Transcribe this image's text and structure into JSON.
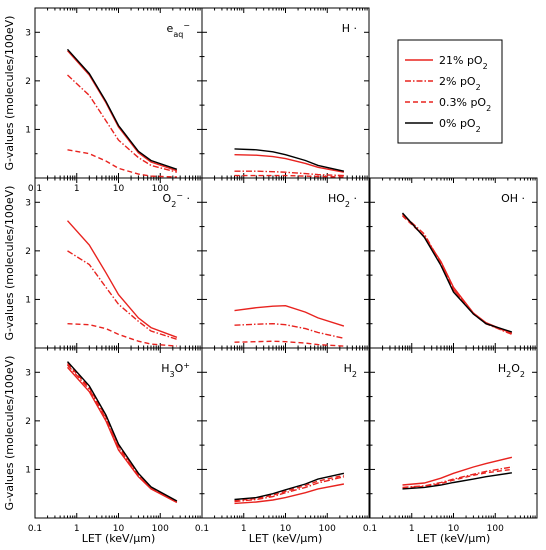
{
  "legend": [
    {
      "label_main": "21% pO",
      "label_sub": "2",
      "color": "#e8231f",
      "dash": "solid"
    },
    {
      "label_main": "2% pO",
      "label_sub": "2",
      "color": "#e8231f",
      "dash": "dashdot"
    },
    {
      "label_main": "0.3% pO",
      "label_sub": "2",
      "color": "#e8231f",
      "dash": "dashed"
    },
    {
      "label_main": "0% pO",
      "label_sub": "2",
      "color": "#000000",
      "dash": "solid"
    }
  ],
  "ylabel": "G-values (molecules/100eV)",
  "xlabel": "LET (keV/μm)",
  "chart_data": [
    {
      "type": "line",
      "row": 0,
      "col": 0,
      "species": {
        "main": "e",
        "sup": "−",
        "sub": "aq"
      },
      "xscale": "log",
      "xlim": [
        0.1,
        1000
      ],
      "ylim": [
        0,
        3.5
      ],
      "x_ticks": [
        "0.1",
        "1",
        "10",
        "100"
      ],
      "y_ticks": [
        "1",
        "2",
        "3"
      ],
      "x": [
        0.6,
        2,
        5,
        10,
        30,
        60,
        250
      ],
      "series": [
        {
          "values": [
            2.62,
            2.12,
            1.55,
            1.05,
            0.52,
            0.33,
            0.15
          ],
          "color": "#e8231f",
          "dash": "solid"
        },
        {
          "values": [
            2.12,
            1.7,
            1.18,
            0.78,
            0.42,
            0.26,
            0.12
          ],
          "color": "#e8231f",
          "dash": "dashdot"
        },
        {
          "values": [
            0.58,
            0.5,
            0.35,
            0.2,
            0.08,
            0.04,
            0.02
          ],
          "color": "#e8231f",
          "dash": "dashed"
        },
        {
          "values": [
            2.65,
            2.15,
            1.58,
            1.08,
            0.55,
            0.36,
            0.18
          ],
          "color": "#000000",
          "dash": "solid"
        }
      ]
    },
    {
      "type": "line",
      "row": 0,
      "col": 1,
      "species": {
        "main": "H",
        "dot": "·"
      },
      "xscale": "log",
      "xlim": [
        0.1,
        1000
      ],
      "ylim": [
        0,
        3.5
      ],
      "x_ticks": [],
      "y_ticks": [],
      "x": [
        0.6,
        2,
        5,
        10,
        30,
        60,
        250
      ],
      "series": [
        {
          "values": [
            0.48,
            0.47,
            0.44,
            0.4,
            0.3,
            0.22,
            0.12
          ],
          "color": "#e8231f",
          "dash": "solid"
        },
        {
          "values": [
            0.14,
            0.14,
            0.13,
            0.12,
            0.09,
            0.07,
            0.05
          ],
          "color": "#e8231f",
          "dash": "dashdot"
        },
        {
          "values": [
            0.05,
            0.05,
            0.05,
            0.05,
            0.04,
            0.03,
            0.02
          ],
          "color": "#e8231f",
          "dash": "dashed"
        },
        {
          "values": [
            0.6,
            0.58,
            0.54,
            0.48,
            0.36,
            0.26,
            0.14
          ],
          "color": "#000000",
          "dash": "solid"
        }
      ]
    },
    {
      "type": "line",
      "row": 1,
      "col": 0,
      "species": {
        "main": "O",
        "sub": "2",
        "sup": "−",
        "dot": "·"
      },
      "xscale": "log",
      "xlim": [
        0.1,
        1000
      ],
      "ylim": [
        0,
        3.5
      ],
      "x_ticks": [],
      "y_ticks": [
        "1",
        "2",
        "3"
      ],
      "x": [
        0.6,
        2,
        5,
        10,
        30,
        60,
        250
      ],
      "series": [
        {
          "values": [
            2.62,
            2.12,
            1.55,
            1.1,
            0.62,
            0.42,
            0.22
          ],
          "color": "#e8231f",
          "dash": "solid"
        },
        {
          "values": [
            2.0,
            1.72,
            1.25,
            0.9,
            0.55,
            0.35,
            0.18
          ],
          "color": "#e8231f",
          "dash": "dashdot"
        },
        {
          "values": [
            0.5,
            0.48,
            0.4,
            0.28,
            0.14,
            0.08,
            0.04
          ],
          "color": "#e8231f",
          "dash": "dashed"
        }
      ]
    },
    {
      "type": "line",
      "row": 1,
      "col": 1,
      "species": {
        "main": "HO",
        "sub": "2",
        "dot": "·"
      },
      "xscale": "log",
      "xlim": [
        0.1,
        1000
      ],
      "ylim": [
        0,
        3.5
      ],
      "x_ticks": [],
      "y_ticks": [],
      "x": [
        0.6,
        2,
        5,
        10,
        30,
        60,
        250
      ],
      "series": [
        {
          "values": [
            0.77,
            0.83,
            0.86,
            0.87,
            0.74,
            0.62,
            0.45
          ],
          "color": "#e8231f",
          "dash": "solid"
        },
        {
          "values": [
            0.47,
            0.49,
            0.5,
            0.48,
            0.4,
            0.32,
            0.2
          ],
          "color": "#e8231f",
          "dash": "dashdot"
        },
        {
          "values": [
            0.12,
            0.13,
            0.14,
            0.13,
            0.1,
            0.07,
            0.04
          ],
          "color": "#e8231f",
          "dash": "dashed"
        }
      ]
    },
    {
      "type": "line",
      "row": 1,
      "col": 2,
      "species": {
        "main": "OH",
        "dot": "·"
      },
      "xscale": "log",
      "xlim": [
        0.1,
        1000
      ],
      "ylim": [
        0,
        3.5
      ],
      "x_ticks": [],
      "y_ticks": [],
      "x": [
        0.6,
        2,
        5,
        10,
        30,
        60,
        250
      ],
      "series": [
        {
          "values": [
            2.75,
            2.3,
            1.78,
            1.25,
            0.72,
            0.52,
            0.3
          ],
          "color": "#e8231f",
          "dash": "solid"
        },
        {
          "values": [
            2.75,
            2.35,
            1.75,
            1.2,
            0.72,
            0.5,
            0.28
          ],
          "color": "#e8231f",
          "dash": "dashdot"
        },
        {
          "values": [
            2.72,
            2.3,
            1.72,
            1.2,
            0.7,
            0.5,
            0.3
          ],
          "color": "#e8231f",
          "dash": "dashed"
        },
        {
          "values": [
            2.78,
            2.28,
            1.7,
            1.15,
            0.7,
            0.5,
            0.33
          ],
          "color": "#000000",
          "dash": "solid"
        }
      ]
    },
    {
      "type": "line",
      "row": 2,
      "col": 0,
      "species": {
        "main": "H",
        "sub": "3",
        "mid": "O",
        "sup": "+"
      },
      "xscale": "log",
      "xlim": [
        0.1,
        1000
      ],
      "ylim": [
        0,
        3.5
      ],
      "x_ticks": [
        "0.1",
        "1",
        "10",
        "100"
      ],
      "y_ticks": [
        "1",
        "2",
        "3"
      ],
      "x": [
        0.6,
        2,
        5,
        10,
        30,
        60,
        250
      ],
      "series": [
        {
          "values": [
            3.1,
            2.6,
            2.0,
            1.4,
            0.85,
            0.6,
            0.32
          ],
          "color": "#e8231f",
          "dash": "solid"
        },
        {
          "values": [
            3.15,
            2.65,
            2.05,
            1.45,
            0.88,
            0.62,
            0.33
          ],
          "color": "#e8231f",
          "dash": "dashdot"
        },
        {
          "values": [
            3.18,
            2.68,
            2.08,
            1.48,
            0.9,
            0.62,
            0.34
          ],
          "color": "#e8231f",
          "dash": "dashed"
        },
        {
          "values": [
            3.22,
            2.72,
            2.12,
            1.52,
            0.92,
            0.64,
            0.35
          ],
          "color": "#000000",
          "dash": "solid"
        }
      ]
    },
    {
      "type": "line",
      "row": 2,
      "col": 1,
      "species": {
        "main": "H",
        "sub": "2"
      },
      "xscale": "log",
      "xlim": [
        0.1,
        1000
      ],
      "ylim": [
        0,
        3.5
      ],
      "x_ticks": [
        "0.1",
        "1",
        "10",
        "100"
      ],
      "y_ticks": [],
      "x": [
        0.6,
        2,
        5,
        10,
        30,
        60,
        250
      ],
      "series": [
        {
          "values": [
            0.3,
            0.33,
            0.37,
            0.42,
            0.52,
            0.6,
            0.7
          ],
          "color": "#e8231f",
          "dash": "solid"
        },
        {
          "values": [
            0.34,
            0.38,
            0.44,
            0.52,
            0.63,
            0.72,
            0.85
          ],
          "color": "#e8231f",
          "dash": "dashdot"
        },
        {
          "values": [
            0.36,
            0.4,
            0.47,
            0.55,
            0.67,
            0.76,
            0.88
          ],
          "color": "#e8231f",
          "dash": "dashed"
        },
        {
          "values": [
            0.38,
            0.42,
            0.5,
            0.58,
            0.7,
            0.8,
            0.92
          ],
          "color": "#000000",
          "dash": "solid"
        }
      ]
    },
    {
      "type": "line",
      "row": 2,
      "col": 2,
      "species": {
        "main": "H",
        "sub": "2",
        "mid": "O",
        "sub2": "2"
      },
      "xscale": "log",
      "xlim": [
        0.1,
        1000
      ],
      "ylim": [
        0,
        3.5
      ],
      "x_ticks": [
        "0.1",
        "1",
        "10",
        "100"
      ],
      "y_ticks": [],
      "x": [
        0.6,
        2,
        5,
        10,
        30,
        60,
        250
      ],
      "series": [
        {
          "values": [
            0.68,
            0.72,
            0.82,
            0.92,
            1.05,
            1.12,
            1.25
          ],
          "color": "#e8231f",
          "dash": "solid"
        },
        {
          "values": [
            0.63,
            0.66,
            0.73,
            0.8,
            0.9,
            0.96,
            1.05
          ],
          "color": "#e8231f",
          "dash": "dashdot"
        },
        {
          "values": [
            0.62,
            0.65,
            0.71,
            0.78,
            0.88,
            0.93,
            1.0
          ],
          "color": "#e8231f",
          "dash": "dashed"
        },
        {
          "values": [
            0.6,
            0.63,
            0.68,
            0.73,
            0.8,
            0.85,
            0.93
          ],
          "color": "#000000",
          "dash": "solid"
        }
      ]
    }
  ]
}
